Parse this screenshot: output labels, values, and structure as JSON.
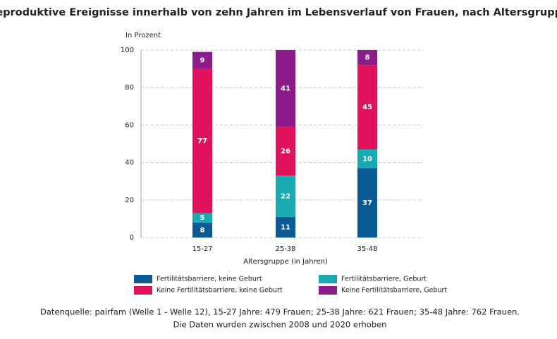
{
  "chart_data": {
    "type": "stacked_bar",
    "title": "Reproduktive Ereignisse innerhalb von zehn Jahren im Lebensverlauf von Frauen, nach Altersgruppe",
    "y_label": "In Prozent",
    "x_label": "Altersgruppe (in Jahren)",
    "categories": [
      "15-27",
      "25-38",
      "35-48"
    ],
    "series": [
      {
        "name": "Fertilitätsbarriere, keine Geburt",
        "color": "#0b5a94",
        "values": [
          8,
          11,
          37
        ]
      },
      {
        "name": "Fertilitätsbarriere, Geburt",
        "color": "#19a9b1",
        "values": [
          5,
          22,
          10
        ]
      },
      {
        "name": "Keine Fertilitätsbarriere, keine Geburt",
        "color": "#e0125c",
        "values": [
          77,
          26,
          45
        ]
      },
      {
        "name": "Keine Fertilitätsbarriere, Geburt",
        "color": "#8c1c8c",
        "values": [
          9,
          41,
          8
        ]
      }
    ],
    "ylim": [
      0,
      100
    ],
    "yticks": [
      0,
      20,
      40,
      60,
      80,
      100
    ],
    "grid": true,
    "legend": "bottom",
    "source": [
      "Datenquelle: pairfam (Welle 1 - Welle 12), 15-27 Jahre: 479 Frauen; 25-38 Jahre: 621 Frauen; 35-48 Jahre: 762 Frauen.",
      "Die Daten  wurden zwischen 2008 und 2020 erhoben"
    ]
  }
}
